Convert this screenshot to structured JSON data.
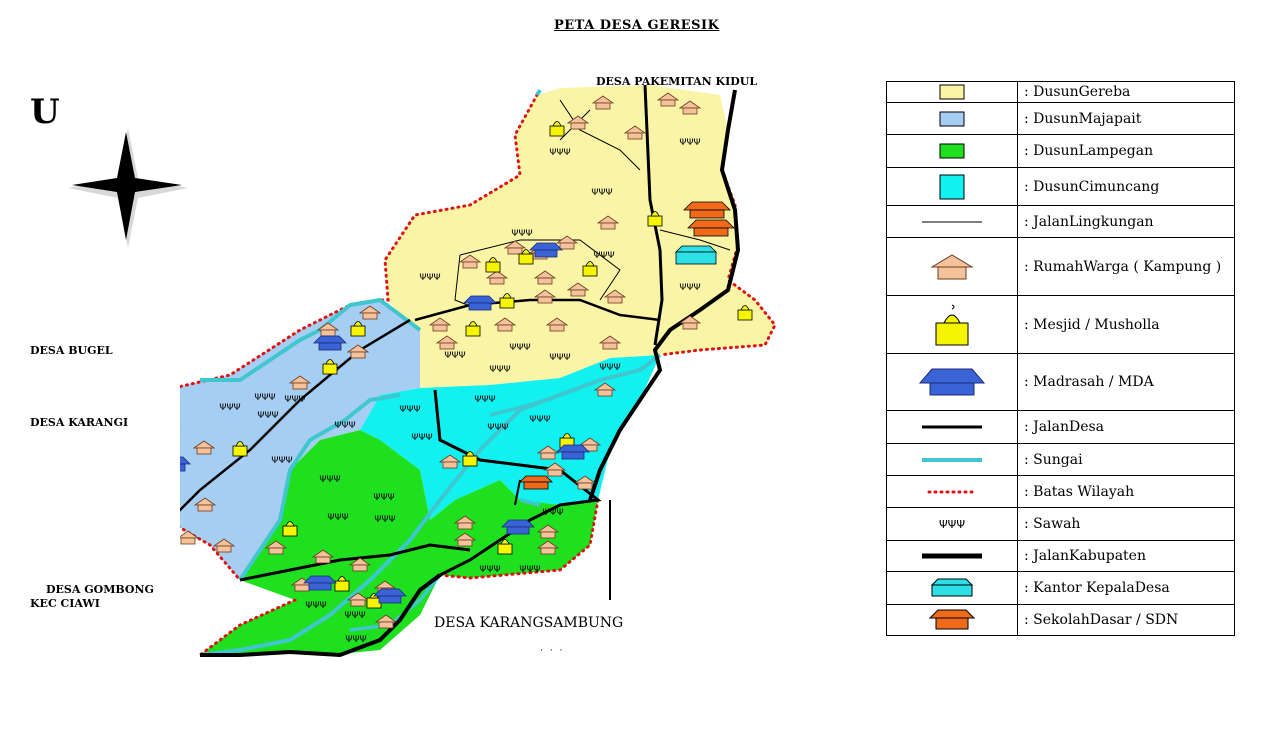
{
  "title": "PETA DESA GERESIK",
  "compass": {
    "north_label": "U"
  },
  "places": {
    "north": "DESA PAKEMITAN KIDUL",
    "bugel": "DESA BUGEL",
    "karang": "DESA KARANGI",
    "gombong_1": "DESA  GOMBONG",
    "gombong_2": "KEC  CIAWI",
    "south": "DESA KARANGSAMBUNG",
    "south_dots": "· · ·"
  },
  "colors": {
    "gereba": "#faf5a6",
    "majapait": "#a6cdf2",
    "lampegan": "#1ee01e",
    "cimuncang": "#12f0f0",
    "river": "#3fc6cf",
    "boundary": "#e01010",
    "house": "#f5c29b",
    "mosque": "#f5f500",
    "madrasah": "#3a63d6",
    "office": "#2de0e6",
    "school": "#f06a1a"
  },
  "legend": [
    {
      "icon": "yellow-area-swatch",
      "label": ": DusunGereba"
    },
    {
      "icon": "blue-area-swatch",
      "label": ": DusunMajapait"
    },
    {
      "icon": "green-area-swatch",
      "label": ": DusunLampegan"
    },
    {
      "icon": "cyan-area-swatch",
      "label": ": DusunCimuncang"
    },
    {
      "icon": "thin-line",
      "label": ": JalanLingkungan"
    },
    {
      "icon": "house-icon",
      "label": ":  RumahWarga ( Kampung )"
    },
    {
      "icon": "mosque-icon",
      "label": ": Mesjid / Musholla"
    },
    {
      "icon": "madrasah-icon",
      "label": ":  Madrasah / MDA"
    },
    {
      "icon": "thick-line",
      "label": ":  JalanDesa"
    },
    {
      "icon": "river-line",
      "label": ":  Sungai"
    },
    {
      "icon": "dotted-red-line",
      "label": ": Batas Wilayah"
    },
    {
      "icon": "rice-field-icon",
      "label": ": Sawah"
    },
    {
      "icon": "very-thick-line",
      "label": ":  JalanKabupaten"
    },
    {
      "icon": "office-icon",
      "label": ": Kantor KepalaDesa"
    },
    {
      "icon": "school-icon",
      "label": ": SekolahDasar / SDN"
    }
  ]
}
